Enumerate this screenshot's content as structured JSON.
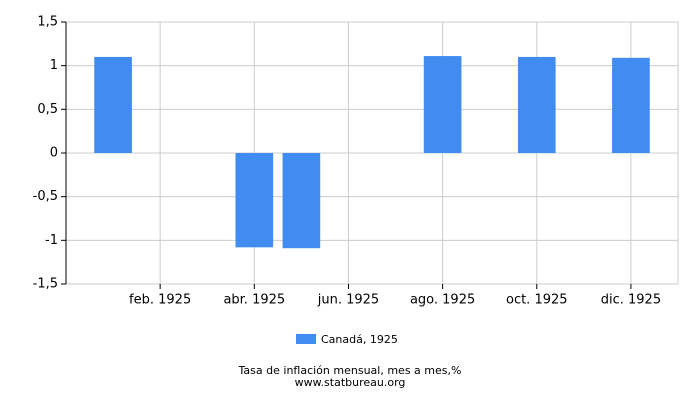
{
  "chart_data": {
    "type": "bar",
    "categories": [
      null,
      "feb. 1925",
      null,
      "abr. 1925",
      null,
      "jun. 1925",
      null,
      "ago. 1925",
      null,
      "oct. 1925",
      null,
      "dic. 1925"
    ],
    "series": [
      {
        "name": "Canadá, 1925",
        "color": "#418cf0",
        "values": [
          1.1,
          0,
          0,
          -1.08,
          -1.09,
          0,
          0,
          1.11,
          0,
          1.1,
          0,
          1.09
        ]
      }
    ],
    "ylim": [
      -1.5,
      1.5
    ],
    "yticks": [
      {
        "value": -1.5,
        "label": "-1,5"
      },
      -1,
      {
        "value": -0.5,
        "label": "-0,5"
      },
      0,
      {
        "value": 0.5,
        "label": "0,5"
      },
      1,
      {
        "value": 1.5,
        "label": "1,5"
      }
    ],
    "grid": true,
    "xlabel": "Tasa de inflación mensual, mes a mes,%",
    "source": "www.statbureau.org"
  }
}
